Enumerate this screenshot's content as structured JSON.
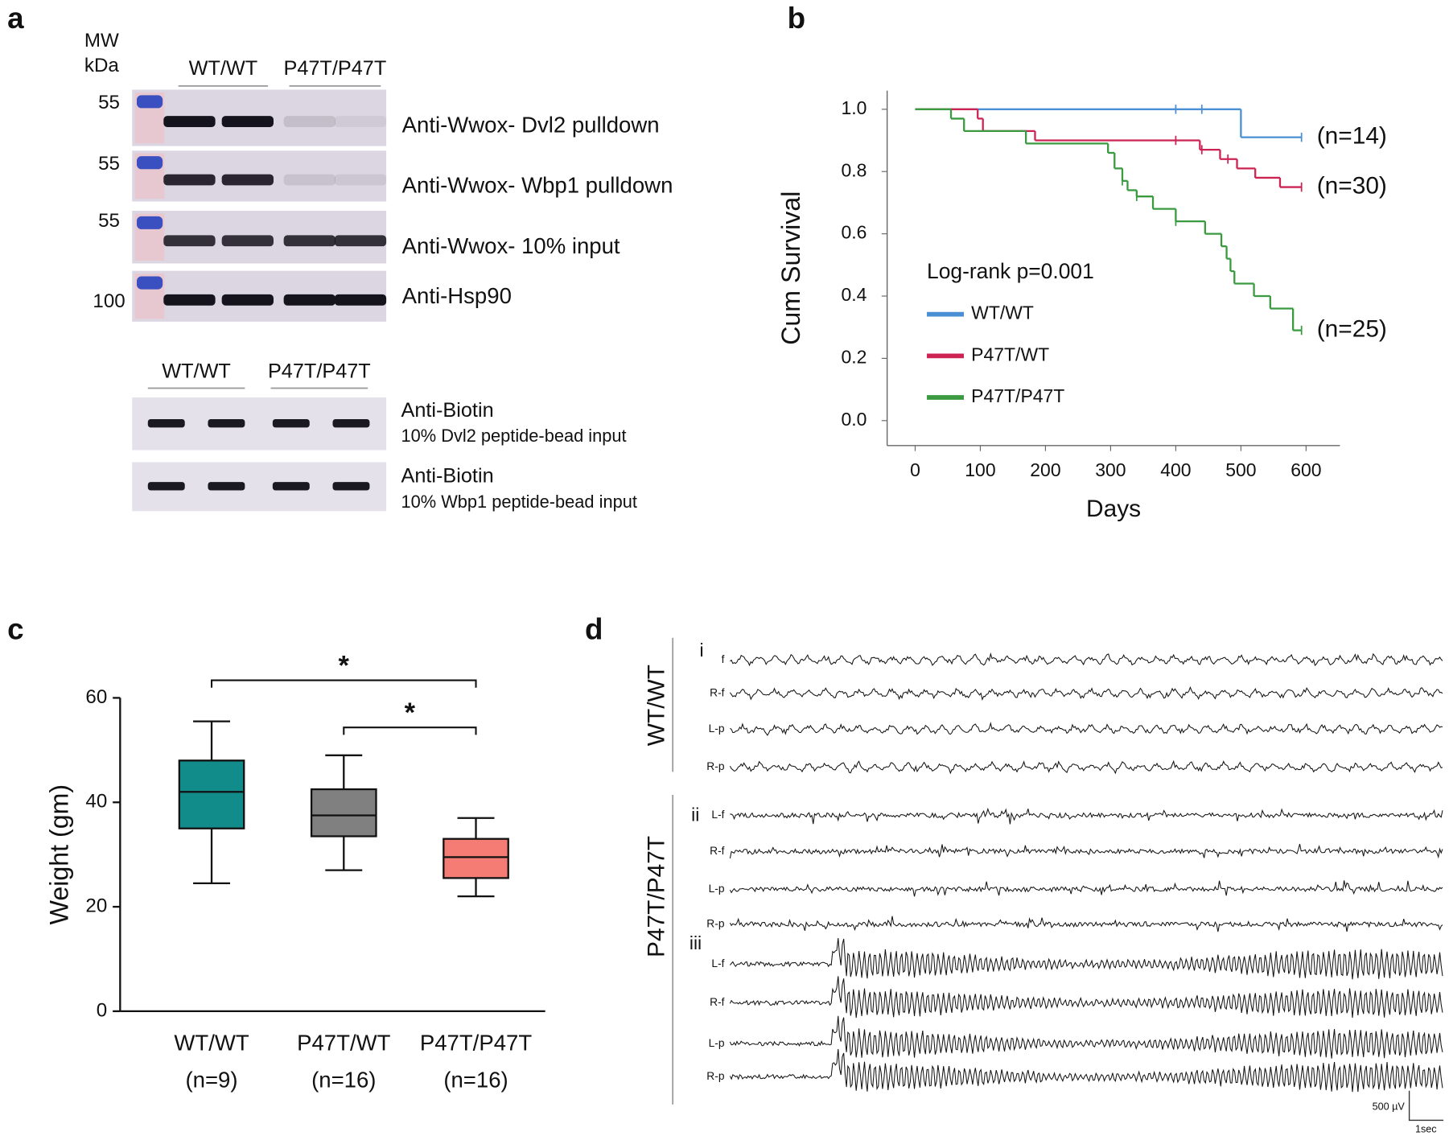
{
  "panel_labels": [
    "a",
    "b",
    "c",
    "d"
  ],
  "blot": {
    "mw_header": [
      "MW",
      "kDa"
    ],
    "top_groups": [
      "WT/WT",
      "P47T/P47T"
    ],
    "top_rows": [
      {
        "mw": 55,
        "label": "Anti-Wwox- Dvl2 pulldown"
      },
      {
        "mw": 55,
        "label": "Anti-Wwox- Wbp1 pulldown"
      },
      {
        "mw": 55,
        "label": "Anti-Wwox- 10% input"
      },
      {
        "mw": 100,
        "label": "Anti-Hsp90"
      }
    ],
    "bottom_groups": [
      "WT/WT",
      "P47T/P47T"
    ],
    "bottom_rows": [
      {
        "label": "Anti-Biotin",
        "sublabel": "10% Dvl2 peptide-bead input"
      },
      {
        "label": "Anti-Biotin",
        "sublabel": "10% Wbp1 peptide-bead input"
      }
    ]
  },
  "chart_data": [
    {
      "type": "step",
      "xlabel": "Days",
      "ylabel": "Cum Survival",
      "xlim": [
        -43,
        652
      ],
      "ylim": [
        -0.08,
        1.06
      ],
      "xticks": [
        0,
        100,
        200,
        300,
        400,
        500,
        600
      ],
      "yticks": [
        {
          "value": 1.0,
          "label": "1.0"
        },
        {
          "value": 0.8,
          "label": "0.8"
        },
        {
          "value": 0.6,
          "label": "0.6"
        },
        {
          "value": 0.4,
          "label": "0.4"
        },
        {
          "value": 0.2,
          "label": "0.2"
        },
        {
          "value": 0.0,
          "label": "0.0"
        }
      ],
      "legend": "lower-left",
      "legend_title": "Log-rank p=0.001",
      "series": [
        {
          "name": "WT/WT",
          "color": "#4a8fd4",
          "annotation": "(n=14)",
          "x": [
            0,
            500,
            593
          ],
          "values": [
            1.0,
            0.91,
            0.91
          ],
          "censored": [
            400,
            440,
            593
          ]
        },
        {
          "name": "P47T/WT",
          "color": "#cc2353",
          "annotation": "(n=30)",
          "x": [
            0,
            96,
            104,
            184,
            437,
            468,
            494,
            522,
            560,
            593
          ],
          "values": [
            1.0,
            0.97,
            0.93,
            0.9,
            0.87,
            0.84,
            0.81,
            0.78,
            0.75,
            0.75
          ],
          "censored": [
            400,
            440,
            480,
            593
          ]
        },
        {
          "name": "P47T/P47T",
          "color": "#3a9a40",
          "annotation": "(n=25)",
          "x": [
            0,
            55,
            75,
            170,
            296,
            306,
            318,
            326,
            340,
            365,
            400,
            445,
            470,
            478,
            484,
            490,
            520,
            545,
            580,
            593
          ],
          "values": [
            1.0,
            0.97,
            0.93,
            0.89,
            0.86,
            0.81,
            0.77,
            0.74,
            0.72,
            0.68,
            0.64,
            0.6,
            0.56,
            0.52,
            0.48,
            0.44,
            0.4,
            0.36,
            0.29,
            0.29
          ],
          "censored": [
            318,
            340,
            400,
            593
          ]
        }
      ]
    },
    {
      "type": "box",
      "ylabel": "Weight (gm)",
      "ylim": [
        0,
        60
      ],
      "yticks": [
        0,
        20,
        40,
        60
      ],
      "categories": [
        "WT/WT",
        "P47T/WT",
        "P47T/P47T"
      ],
      "category_notes": [
        "(n=9)",
        "(n=16)",
        "(n=16)"
      ],
      "boxes": [
        {
          "min": 24.5,
          "q1": 35,
          "median": 42,
          "q3": 48,
          "max": 55.5,
          "color": "#128c8a"
        },
        {
          "min": 27,
          "q1": 33.5,
          "median": 37.5,
          "q3": 42.5,
          "max": 49,
          "color": "#808080"
        },
        {
          "min": 22,
          "q1": 25.5,
          "median": 29.5,
          "q3": 33,
          "max": 37,
          "color": "#f47c74"
        }
      ],
      "significance": [
        {
          "from": 0,
          "to": 2,
          "label": "*"
        },
        {
          "from": 1,
          "to": 2,
          "label": "*"
        }
      ]
    }
  ],
  "eeg": {
    "groups": [
      "WT/WT",
      "P47T/P47T"
    ],
    "sections": [
      {
        "label": "i",
        "channels": [
          "f",
          "R-f",
          "L-p",
          "R-p"
        ]
      },
      {
        "label": "ii",
        "channels": [
          "L-f",
          "R-f",
          "L-p",
          "R-p"
        ]
      },
      {
        "label": "iii",
        "channels": [
          "L-f",
          "R-f",
          "L-p",
          "R-p"
        ]
      }
    ],
    "scale_bar": [
      "500 µV",
      "1sec"
    ]
  }
}
